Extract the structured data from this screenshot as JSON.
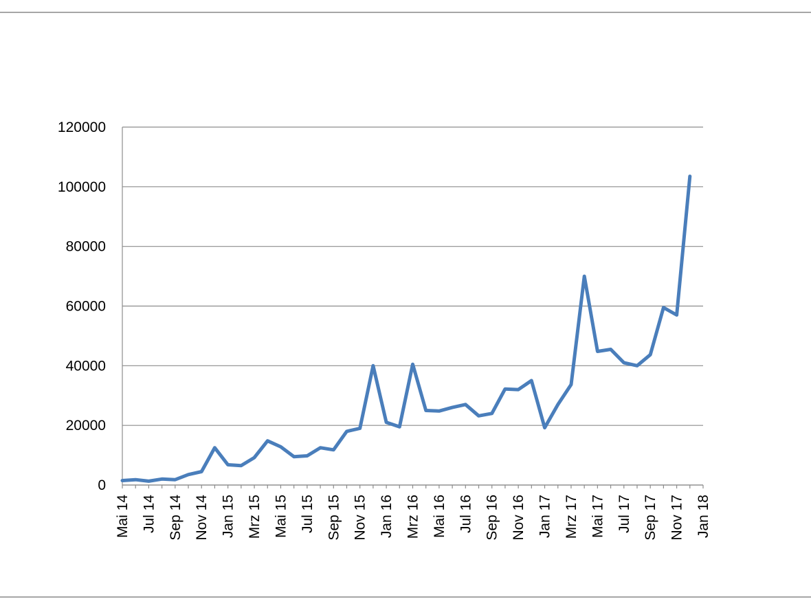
{
  "chart_data": {
    "type": "line",
    "title": "",
    "xlabel": "",
    "ylabel": "",
    "ylim": [
      0,
      120000
    ],
    "yticks": [
      0,
      20000,
      40000,
      60000,
      80000,
      100000,
      120000
    ],
    "ytick_labels": [
      "0",
      "20000",
      "40000",
      "60000",
      "80000",
      "100000",
      "120000"
    ],
    "xtick_labels": [
      "Mai 14",
      "Jul 14",
      "Sep 14",
      "Nov 14",
      "Jan 15",
      "Mrz 15",
      "Mai 15",
      "Jul 15",
      "Sep 15",
      "Nov 15",
      "Jan 16",
      "Mrz 16",
      "Mai 16",
      "Jul 16",
      "Sep 16",
      "Nov 16",
      "Jan 17",
      "Mrz 17",
      "Mai 17",
      "Jul 17",
      "Sep 17",
      "Nov 17",
      "Jan 18"
    ],
    "grid": "horizontal",
    "legend": "none",
    "series_color": "#4a7ebb",
    "series": [
      {
        "x": [
          "2014-05",
          "2014-06",
          "2014-07",
          "2014-08",
          "2014-09",
          "2014-10",
          "2014-11",
          "2014-12",
          "2015-01",
          "2015-02",
          "2015-03",
          "2015-04",
          "2015-05",
          "2015-06",
          "2015-07",
          "2015-08",
          "2015-09",
          "2015-10",
          "2015-11",
          "2015-12",
          "2016-01",
          "2016-02",
          "2016-03",
          "2016-04",
          "2016-05",
          "2016-06",
          "2016-07",
          "2016-08",
          "2016-09",
          "2016-10",
          "2016-11",
          "2016-12",
          "2017-01",
          "2017-02",
          "2017-03",
          "2017-04",
          "2017-05",
          "2017-06",
          "2017-07",
          "2017-08",
          "2017-09",
          "2017-10",
          "2017-11",
          "2017-12"
        ],
        "values": [
          1500,
          1800,
          1300,
          2000,
          1800,
          3500,
          4500,
          12500,
          6800,
          6500,
          9200,
          14800,
          12800,
          9500,
          9800,
          12500,
          11800,
          18000,
          19000,
          40000,
          21000,
          19500,
          40500,
          25000,
          24800,
          26000,
          27000,
          23200,
          24000,
          32200,
          32000,
          35000,
          19200,
          27000,
          33700,
          70000,
          44800,
          45500,
          41000,
          40000,
          43700,
          59500,
          57000,
          103500
        ]
      }
    ]
  }
}
